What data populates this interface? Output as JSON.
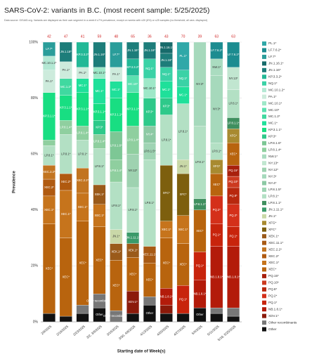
{
  "chart_data": {
    "type": "stacked_bar",
    "title": "SARS-CoV-2: variants in B.C. (most recent sample: 5/25/2025)",
    "subtitle": "Data source: GISAID.org. Variants are displayed as their own segment in a week if ≥7% prevalence, except on weeks with ≤30 (8%) or ≤25 samples (no threshold; all vars. displayed)",
    "x_label": "Starting date of Week(s)",
    "y_label": "Prevalence",
    "categories": [
      "2/9/2025",
      "2/16/2025",
      "2/23/2025",
      "3/2, 3/9/2025",
      "3/16/2025",
      "3/30, 4/6/2025",
      "4/13/2025",
      "4/20/2025",
      "4/27/2025",
      "5/4/2025",
      "5/11/2025",
      "5/18, 5/25/2025"
    ],
    "sample_counts": [
      42,
      47,
      41,
      59,
      48,
      65,
      36,
      43,
      70,
      39,
      63,
      63
    ],
    "ylim": [
      0,
      100
    ],
    "yticks": [
      {
        "value": 0,
        "label": "0%"
      },
      {
        "value": 20,
        "label": "20%"
      },
      {
        "value": 40,
        "label": "40%"
      },
      {
        "value": 60,
        "label": "60%"
      },
      {
        "value": 80,
        "label": "80%"
      },
      {
        "value": 100,
        "label": "100%"
      }
    ],
    "grid": true,
    "legend": "right",
    "series": [
      {
        "name": "Other",
        "color": "#111111",
        "values": [
          3,
          2,
          3,
          5,
          null,
          3,
          6,
          3,
          3,
          5,
          3,
          2
        ]
      },
      {
        "name": "Other recombinants",
        "color": "#777777",
        "values": [
          null,
          null,
          3,
          5,
          4,
          null,
          3,
          null,
          null,
          null,
          2,
          3
        ]
      },
      {
        "name": "XDV.1*",
        "color": "#8b1a0a",
        "values": [
          null,
          null,
          null,
          null,
          null,
          8,
          null,
          3,
          null,
          null,
          null,
          null
        ]
      },
      {
        "name": "NB.1.8.1*",
        "color": "#b31b0a",
        "values": [
          null,
          null,
          null,
          null,
          null,
          null,
          null,
          6,
          null,
          10,
          22,
          22
        ]
      },
      {
        "name": "PQ.1*",
        "color": "#c8240c",
        "values": [
          null,
          null,
          null,
          null,
          null,
          null,
          null,
          null,
          10,
          10,
          8,
          7
        ]
      },
      {
        "name": "PQ.2*",
        "color": "#d4301a",
        "values": [
          null,
          null,
          null,
          null,
          null,
          null,
          null,
          null,
          null,
          null,
          10,
          8
        ]
      },
      {
        "name": "PQ.8*",
        "color": "#b8280e",
        "values": [
          null,
          null,
          null,
          null,
          null,
          null,
          null,
          null,
          null,
          null,
          null,
          6
        ]
      },
      {
        "name": "PQ.10*",
        "color": "#cc3a20",
        "values": [
          null,
          null,
          null,
          null,
          null,
          null,
          null,
          null,
          null,
          null,
          null,
          4
        ]
      },
      {
        "name": "PQ.15*",
        "color": "#a8200c",
        "values": [
          null,
          null,
          null,
          null,
          null,
          null,
          null,
          null,
          null,
          null,
          null,
          4
        ]
      },
      {
        "name": "XEC*",
        "color": "#b8640e",
        "values": [
          32,
          28,
          30,
          24,
          18,
          12,
          12,
          18,
          15,
          15,
          8,
          8
        ]
      },
      {
        "name": "XEC.1*",
        "color": "#c6741c",
        "values": [
          10,
          17,
          10,
          8,
          null,
          null,
          null,
          6,
          10,
          null,
          null,
          null
        ]
      },
      {
        "name": "XEC.2*",
        "color": "#b05a10",
        "values": [
          6,
          6,
          null,
          null,
          null,
          null,
          null,
          null,
          null,
          null,
          null,
          null
        ]
      },
      {
        "name": "XEC.2.2*",
        "color": "#c27420",
        "values": [
          5,
          null,
          9,
          null,
          null,
          null,
          null,
          null,
          null,
          null,
          null,
          null
        ]
      },
      {
        "name": "XEC.11.1*",
        "color": "#a85a14",
        "values": [
          null,
          null,
          null,
          null,
          null,
          null,
          6,
          null,
          null,
          null,
          null,
          null
        ]
      },
      {
        "name": "XEK.1*",
        "color": "#9a5a1a",
        "values": [
          null,
          null,
          null,
          7,
          6,
          5,
          null,
          null,
          null,
          null,
          null,
          null
        ]
      },
      {
        "name": "XFC*",
        "color": "#7d5f0e",
        "values": [
          null,
          null,
          null,
          null,
          null,
          null,
          null,
          20,
          15,
          null,
          null,
          null
        ]
      },
      {
        "name": "XFG*",
        "color": "#a88a30",
        "values": [
          null,
          null,
          null,
          null,
          null,
          null,
          null,
          null,
          null,
          null,
          5,
          5
        ]
      },
      {
        "name": "JN.1*",
        "color": "#c9d8a8",
        "values": [
          null,
          null,
          null,
          null,
          5,
          null,
          null,
          null,
          5,
          null,
          null,
          null
        ]
      },
      {
        "name": "JN.1.11.1*",
        "color": "#3a9a6a",
        "values": [
          null,
          null,
          null,
          null,
          null,
          4,
          null,
          null,
          null,
          null,
          null,
          null
        ]
      },
      {
        "name": "LP.8.1.1*",
        "color": "#3f8f5f",
        "values": [
          null,
          null,
          null,
          null,
          null,
          null,
          null,
          null,
          null,
          4,
          null,
          4
        ]
      },
      {
        "name": "LP.8.1*",
        "color": "#b3e0c4",
        "values": [
          7,
          14,
          10,
          13,
          17,
          16,
          31,
          18,
          20,
          26,
          6,
          10
        ]
      },
      {
        "name": "LP.8.1.5*",
        "color": "#9fd4b4",
        "values": [
          null,
          null,
          null,
          null,
          null,
          null,
          6,
          null,
          null,
          null,
          null,
          null
        ]
      },
      {
        "name": "NY.4*",
        "color": "#8cc9a4",
        "values": [
          null,
          null,
          null,
          null,
          null,
          null,
          6,
          null,
          null,
          null,
          null,
          null
        ]
      },
      {
        "name": "NY.3*",
        "color": "#a6d9bc",
        "values": [
          null,
          null,
          null,
          null,
          null,
          null,
          null,
          null,
          null,
          30,
          24,
          null
        ]
      },
      {
        "name": "NY.12*",
        "color": "#9ed2b0",
        "values": [
          null,
          null,
          null,
          null,
          null,
          12,
          null,
          null,
          null,
          null,
          null,
          null
        ]
      },
      {
        "name": "NY.13*",
        "color": "#c1e6d0",
        "values": [
          null,
          null,
          null,
          null,
          null,
          null,
          null,
          null,
          null,
          null,
          null,
          8
        ]
      },
      {
        "name": "NW.1*",
        "color": "#aadcc0",
        "values": [
          null,
          null,
          null,
          null,
          null,
          null,
          null,
          null,
          null,
          null,
          6,
          null
        ]
      },
      {
        "name": "LP.8.1.4*",
        "color": "#8fcf9f",
        "values": [
          2,
          5,
          5,
          5,
          8,
          10,
          null,
          null,
          null,
          null,
          null,
          null
        ]
      },
      {
        "name": "LP.8.1.6*",
        "color": "#7dc795",
        "values": [
          null,
          null,
          null,
          null,
          10,
          null,
          null,
          null,
          null,
          null,
          null,
          null
        ]
      },
      {
        "name": "KP.3*",
        "color": "#2ec98a",
        "values": [
          null,
          null,
          null,
          5,
          null,
          null,
          10,
          6,
          null,
          null,
          null,
          null
        ]
      },
      {
        "name": "KP.3.1.1*",
        "color": "#18de82",
        "values": [
          17,
          9,
          12,
          6,
          12,
          12,
          null,
          null,
          null,
          null,
          null,
          null
        ]
      },
      {
        "name": "MC.1*",
        "color": "#1fe09a",
        "values": [
          null,
          null,
          5,
          9,
          6,
          null,
          null,
          6,
          6,
          null,
          null,
          null
        ]
      },
      {
        "name": "MC.1.2*",
        "color": "#40d9a0",
        "values": [
          null,
          6,
          null,
          null,
          null,
          null,
          null,
          null,
          null,
          null,
          null,
          null
        ]
      },
      {
        "name": "MC.10*",
        "color": "#5ce0b0",
        "values": [
          null,
          null,
          null,
          null,
          null,
          6,
          null,
          null,
          null,
          null,
          null,
          null
        ]
      },
      {
        "name": "MC.10.1*",
        "color": "#9ee8c8",
        "values": [
          null,
          null,
          null,
          4,
          null,
          null,
          7,
          null,
          null,
          null,
          null,
          null
        ]
      },
      {
        "name": "PA.1*",
        "color": "#cdebdc",
        "values": [
          8,
          6,
          4,
          null,
          5,
          null,
          null,
          null,
          null,
          null,
          null,
          null
        ]
      },
      {
        "name": "MC.10.1.2*",
        "color": "#b4e8d4",
        "values": [
          5,
          null,
          null,
          null,
          null,
          null,
          null,
          null,
          null,
          null,
          null,
          null
        ]
      },
      {
        "name": "NQ.1*",
        "color": "#3ad2a6",
        "values": [
          null,
          null,
          null,
          null,
          null,
          null,
          7,
          5,
          6,
          null,
          null,
          null
        ]
      },
      {
        "name": "KP.3.3.2*",
        "color": "#22b896",
        "values": [
          null,
          null,
          9,
          null,
          null,
          6,
          null,
          null,
          null,
          null,
          null,
          null
        ]
      },
      {
        "name": "JN.1.16*",
        "color": "#1d7d7a",
        "values": [
          null,
          7,
          null,
          9,
          null,
          6,
          6,
          5,
          null,
          null,
          null,
          null
        ]
      },
      {
        "name": "JN.1.16.1*",
        "color": "#176b6b",
        "values": [
          null,
          null,
          null,
          null,
          null,
          null,
          null,
          4,
          null,
          null,
          null,
          null
        ]
      },
      {
        "name": "LF.7*",
        "color": "#2a9d9a",
        "values": [
          5,
          null,
          null,
          null,
          9,
          null,
          null,
          null,
          null,
          null,
          null,
          null
        ]
      },
      {
        "name": "LF.7.6.2*",
        "color": "#1c8c90",
        "values": [
          null,
          null,
          null,
          null,
          null,
          null,
          null,
          null,
          null,
          null,
          6,
          9
        ]
      },
      {
        "name": "PL.1*",
        "color": "#30a8a8",
        "values": [
          null,
          null,
          null,
          null,
          null,
          null,
          null,
          null,
          10,
          null,
          null,
          null
        ]
      }
    ]
  }
}
